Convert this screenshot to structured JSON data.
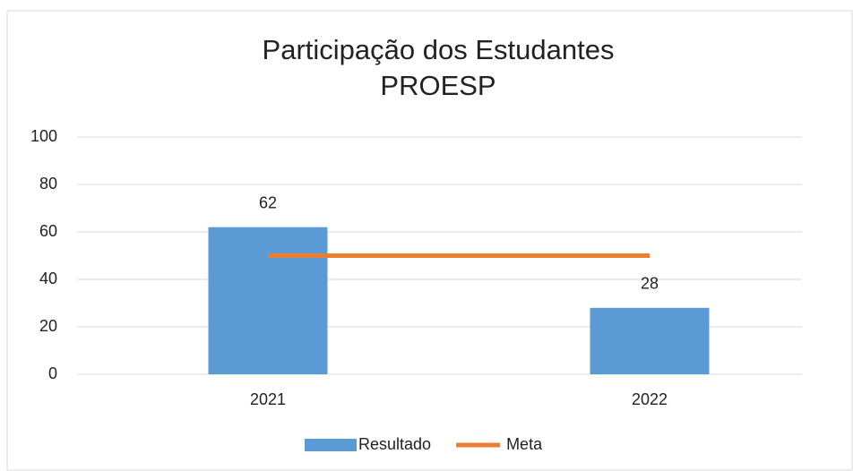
{
  "chart_data": {
    "type": "bar",
    "title": [
      "Participação dos Estudantes",
      "PROESP"
    ],
    "categories": [
      "2021",
      "2022"
    ],
    "series": [
      {
        "name": "Resultado",
        "type": "bar",
        "color": "#5b9bd5",
        "values": [
          62,
          28
        ]
      },
      {
        "name": "Meta",
        "type": "line",
        "color": "#ed7d31",
        "values": [
          50,
          50
        ]
      }
    ],
    "ylim": [
      0,
      100
    ],
    "yticks": [
      0,
      20,
      40,
      60,
      80,
      100
    ],
    "grid": true,
    "legend": "bottom"
  }
}
